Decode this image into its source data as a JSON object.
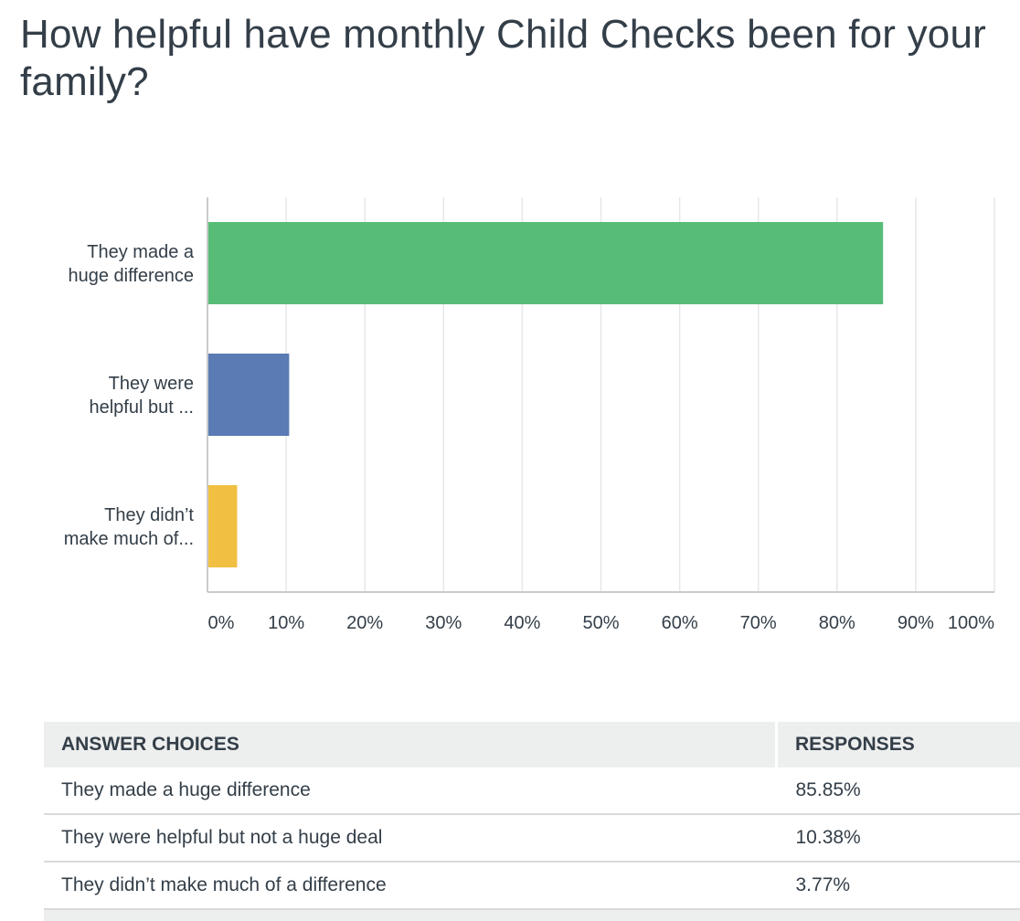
{
  "question": {
    "title": "How helpful have monthly Child Checks been for your family?"
  },
  "chart_data": {
    "type": "bar",
    "orientation": "horizontal",
    "categories": [
      [
        "They made a",
        "huge difference"
      ],
      [
        "They were",
        "helpful but ..."
      ],
      [
        "They didn’t",
        "make much of..."
      ]
    ],
    "values": [
      85.85,
      10.38,
      3.77
    ],
    "colors": [
      "#57bc77",
      "#5a7bb4",
      "#f1c043"
    ],
    "xlim": [
      0,
      100
    ],
    "xticks": [
      "0%",
      "10%",
      "20%",
      "30%",
      "40%",
      "50%",
      "60%",
      "70%",
      "80%",
      "90%",
      "100%"
    ],
    "grid": true
  },
  "table": {
    "headers": [
      "ANSWER CHOICES",
      "RESPONSES"
    ],
    "rows": [
      {
        "choice": "They made a huge difference",
        "response": "85.85%"
      },
      {
        "choice": "They were helpful but not a huge deal",
        "response": "10.38%"
      },
      {
        "choice": "They didn’t make much of a difference",
        "response": "3.77%"
      }
    ]
  }
}
